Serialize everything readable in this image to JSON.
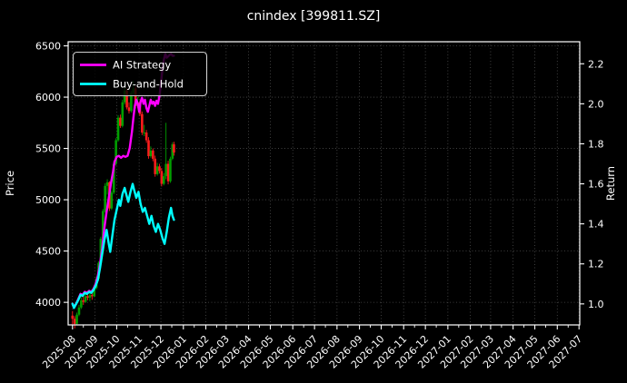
{
  "title": "cnindex [399811.SZ]",
  "colors": {
    "background": "#000000",
    "text": "#ffffff",
    "grid": "rgba(255,255,255,0.30)",
    "spine": "#ffffff",
    "ai_strategy": "#ff00ff",
    "buy_and_hold": "#00ffff",
    "candle_up": "#009e00",
    "candle_down": "#ff1c1c"
  },
  "legend": {
    "items": [
      {
        "label": "AI Strategy",
        "color": "#ff00ff"
      },
      {
        "label": "Buy-and-Hold",
        "color": "#00ffff"
      }
    ],
    "position": "upper left"
  },
  "chart_data": {
    "type": "line",
    "title": "cnindex [399811.SZ]",
    "x_unit": "days since 2025-08-01",
    "xlabel": "",
    "ylabel_left": "Price",
    "ylabel_right": "Return",
    "grid": true,
    "left_axis": {
      "label": "Price",
      "ticks": [
        4000,
        4500,
        5000,
        5500,
        6000,
        6500
      ],
      "range": [
        3780,
        6540
      ]
    },
    "right_axis": {
      "label": "Return",
      "ticks": [
        1.0,
        1.2,
        1.4,
        1.6,
        1.8,
        2.0,
        2.2
      ],
      "range": [
        0.895,
        2.31
      ]
    },
    "x_axis": {
      "range_days": [
        -6,
        700
      ],
      "tick_days": [
        0,
        31,
        61,
        92,
        122,
        153,
        184,
        212,
        243,
        273,
        304,
        334,
        365,
        396,
        426,
        457,
        487,
        518,
        549,
        577,
        608,
        638,
        669,
        699
      ],
      "tick_labels": [
        "2025-08",
        "2025-09",
        "2025-10",
        "2025-11",
        "2025-12",
        "2026-01",
        "2026-02",
        "2026-03",
        "2026-04",
        "2026-05",
        "2026-06",
        "2026-07",
        "2026-08",
        "2026-09",
        "2026-10",
        "2026-11",
        "2026-12",
        "2027-01",
        "2027-02",
        "2027-03",
        "2027-04",
        "2027-05",
        "2027-06",
        "2027-07"
      ]
    },
    "series": [
      {
        "name": "AI Strategy",
        "axis": "right",
        "color": "#ff00ff",
        "points": [
          [
            0,
            1.0
          ],
          [
            2,
            0.985
          ],
          [
            5,
            1.0
          ],
          [
            8,
            1.025
          ],
          [
            11,
            1.05
          ],
          [
            14,
            1.045
          ],
          [
            17,
            1.06
          ],
          [
            20,
            1.055
          ],
          [
            23,
            1.065
          ],
          [
            26,
            1.06
          ],
          [
            29,
            1.075
          ],
          [
            32,
            1.1
          ],
          [
            35,
            1.14
          ],
          [
            38,
            1.2
          ],
          [
            41,
            1.28
          ],
          [
            44,
            1.38
          ],
          [
            47,
            1.46
          ],
          [
            50,
            1.53
          ],
          [
            53,
            1.6
          ],
          [
            56,
            1.66
          ],
          [
            58,
            1.71
          ],
          [
            61,
            1.735
          ],
          [
            64,
            1.74
          ],
          [
            67,
            1.73
          ],
          [
            70,
            1.74
          ],
          [
            73,
            1.735
          ],
          [
            76,
            1.74
          ],
          [
            79,
            1.78
          ],
          [
            82,
            1.86
          ],
          [
            84,
            1.93
          ],
          [
            86,
            1.99
          ],
          [
            88,
            2.02
          ],
          [
            90,
            2.0
          ],
          [
            92,
            1.96
          ],
          [
            94,
            2.01
          ],
          [
            96,
            2.03
          ],
          [
            98,
            2.0
          ],
          [
            100,
            2.02
          ],
          [
            102,
            1.98
          ],
          [
            104,
            1.96
          ],
          [
            106,
            1.99
          ],
          [
            108,
            2.02
          ],
          [
            110,
            2.0
          ],
          [
            112,
            2.01
          ],
          [
            114,
            1.99
          ],
          [
            116,
            2.015
          ],
          [
            118,
            2.0
          ],
          [
            120,
            2.04
          ],
          [
            122,
            2.1
          ],
          [
            124,
            2.17
          ],
          [
            126,
            2.22
          ],
          [
            128,
            2.25
          ],
          [
            130,
            2.23
          ],
          [
            133,
            2.24
          ],
          [
            136,
            2.25
          ],
          [
            138,
            2.24
          ],
          [
            140,
            2.24
          ]
        ]
      },
      {
        "name": "Buy-and-Hold",
        "axis": "right",
        "color": "#00ffff",
        "points": [
          [
            0,
            1.0
          ],
          [
            2,
            0.98
          ],
          [
            5,
            1.0
          ],
          [
            8,
            1.02
          ],
          [
            11,
            1.045
          ],
          [
            14,
            1.04
          ],
          [
            17,
            1.055
          ],
          [
            20,
            1.05
          ],
          [
            23,
            1.06
          ],
          [
            26,
            1.055
          ],
          [
            29,
            1.07
          ],
          [
            32,
            1.09
          ],
          [
            35,
            1.12
          ],
          [
            38,
            1.18
          ],
          [
            41,
            1.25
          ],
          [
            44,
            1.32
          ],
          [
            47,
            1.37
          ],
          [
            50,
            1.3
          ],
          [
            52,
            1.26
          ],
          [
            55,
            1.34
          ],
          [
            58,
            1.42
          ],
          [
            61,
            1.47
          ],
          [
            64,
            1.52
          ],
          [
            66,
            1.49
          ],
          [
            69,
            1.55
          ],
          [
            72,
            1.58
          ],
          [
            74,
            1.55
          ],
          [
            77,
            1.51
          ],
          [
            80,
            1.56
          ],
          [
            83,
            1.6
          ],
          [
            85,
            1.57
          ],
          [
            88,
            1.53
          ],
          [
            91,
            1.56
          ],
          [
            94,
            1.5
          ],
          [
            97,
            1.46
          ],
          [
            100,
            1.48
          ],
          [
            103,
            1.44
          ],
          [
            106,
            1.4
          ],
          [
            109,
            1.44
          ],
          [
            112,
            1.39
          ],
          [
            115,
            1.36
          ],
          [
            118,
            1.4
          ],
          [
            121,
            1.37
          ],
          [
            124,
            1.33
          ],
          [
            127,
            1.3
          ],
          [
            130,
            1.36
          ],
          [
            133,
            1.43
          ],
          [
            136,
            1.48
          ],
          [
            138,
            1.44
          ],
          [
            140,
            1.42
          ]
        ]
      }
    ],
    "candlestick_series": {
      "name": "cnindex daily OHLC (estimated)",
      "axis": "left",
      "up_color": "#009e00",
      "down_color": "#ff1c1c",
      "bars_day_ohlc": [
        [
          0,
          3870,
          3915,
          3785,
          3840
        ],
        [
          3,
          3840,
          3865,
          3745,
          3790
        ],
        [
          6,
          3790,
          3900,
          3780,
          3880
        ],
        [
          9,
          3880,
          3975,
          3865,
          3950
        ],
        [
          12,
          3950,
          4050,
          3935,
          4020
        ],
        [
          15,
          4020,
          4060,
          3975,
          4005
        ],
        [
          18,
          4005,
          4080,
          3995,
          4060
        ],
        [
          21,
          4060,
          4090,
          4020,
          4045
        ],
        [
          24,
          4045,
          4100,
          4010,
          4070
        ],
        [
          27,
          4070,
          4110,
          4025,
          4060
        ],
        [
          30,
          4060,
          4160,
          4050,
          4140
        ],
        [
          33,
          4140,
          4250,
          4125,
          4230
        ],
        [
          36,
          4230,
          4400,
          4215,
          4385
        ],
        [
          39,
          4385,
          4640,
          4370,
          4620
        ],
        [
          42,
          4620,
          4910,
          4605,
          4890
        ],
        [
          45,
          4890,
          5160,
          4875,
          5135
        ],
        [
          48,
          5135,
          5200,
          5050,
          5170
        ],
        [
          51,
          5170,
          5180,
          4890,
          4915
        ],
        [
          54,
          4915,
          5090,
          4900,
          5070
        ],
        [
          57,
          5070,
          5370,
          5055,
          5350
        ],
        [
          60,
          5350,
          5600,
          5335,
          5580
        ],
        [
          63,
          5580,
          5825,
          5565,
          5800
        ],
        [
          66,
          5800,
          5830,
          5700,
          5720
        ],
        [
          69,
          5720,
          5975,
          5705,
          5950
        ],
        [
          72,
          5950,
          6090,
          5930,
          6065
        ],
        [
          75,
          6065,
          6085,
          5880,
          5900
        ],
        [
          78,
          5900,
          5950,
          5840,
          5865
        ],
        [
          81,
          5865,
          6060,
          5850,
          6040
        ],
        [
          84,
          6040,
          6160,
          6020,
          6085
        ],
        [
          87,
          6085,
          6110,
          5890,
          5915
        ],
        [
          90,
          5915,
          6000,
          5895,
          5950
        ],
        [
          93,
          5950,
          5970,
          5815,
          5835
        ],
        [
          96,
          5835,
          5860,
          5630,
          5655
        ],
        [
          99,
          5655,
          5730,
          5620,
          5655
        ],
        [
          102,
          5655,
          5680,
          5555,
          5580
        ],
        [
          105,
          5580,
          5610,
          5400,
          5425
        ],
        [
          108,
          5425,
          5520,
          5410,
          5480
        ],
        [
          111,
          5480,
          5500,
          5375,
          5400
        ],
        [
          114,
          5400,
          5430,
          5225,
          5250
        ],
        [
          117,
          5250,
          5360,
          5235,
          5325
        ],
        [
          120,
          5325,
          5350,
          5255,
          5280
        ],
        [
          123,
          5280,
          5310,
          5130,
          5155
        ],
        [
          126,
          5155,
          5260,
          5140,
          5230
        ],
        [
          129,
          5230,
          5750,
          5200,
          5350
        ],
        [
          132,
          5350,
          5380,
          5150,
          5180
        ],
        [
          135,
          5180,
          5420,
          5165,
          5400
        ],
        [
          138,
          5400,
          5560,
          5385,
          5540
        ],
        [
          140,
          5540,
          5565,
          5430,
          5460
        ]
      ]
    }
  }
}
